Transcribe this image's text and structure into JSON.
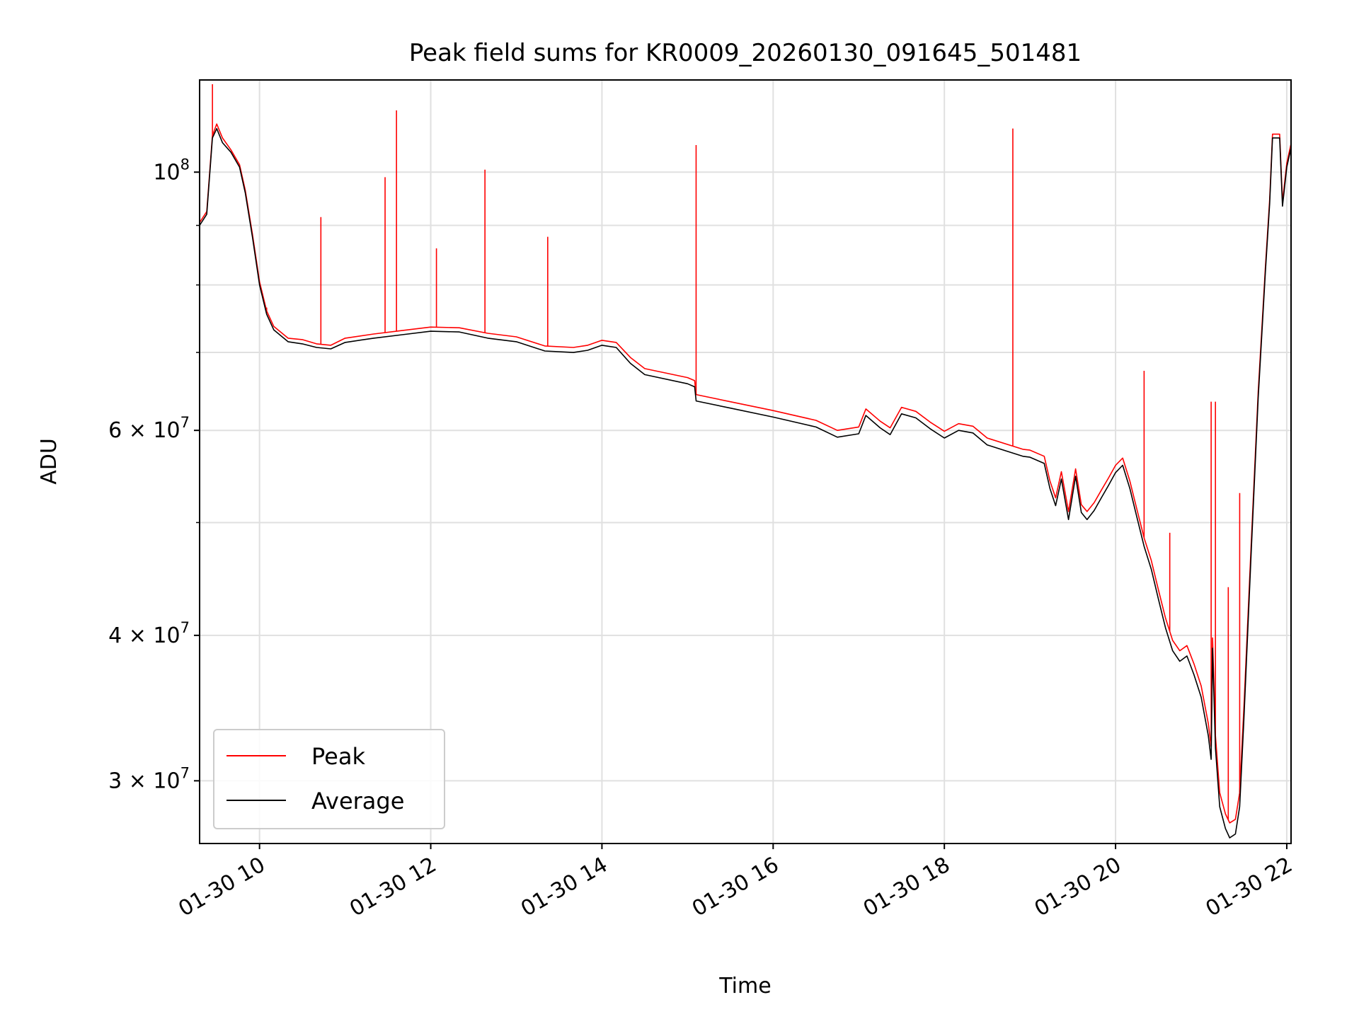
{
  "chart_data": {
    "type": "line",
    "title": "Peak field sums for KR0009_20260130_091645_501481",
    "xlabel": "Time",
    "ylabel": "ADU",
    "yscale": "log",
    "ylim": [
      26500000,
      120000000
    ],
    "xlim": [
      "2026-01-30 09:18",
      "2026-01-30 22:03"
    ],
    "grid": true,
    "legend": {
      "location": "lower-left",
      "entries": [
        "Peak",
        "Average"
      ]
    },
    "x_ticks": [
      {
        "value": "2026-01-30 10:00",
        "label": "01-30 10"
      },
      {
        "value": "2026-01-30 12:00",
        "label": "01-30 12"
      },
      {
        "value": "2026-01-30 14:00",
        "label": "01-30 14"
      },
      {
        "value": "2026-01-30 16:00",
        "label": "01-30 16"
      },
      {
        "value": "2026-01-30 18:00",
        "label": "01-30 18"
      },
      {
        "value": "2026-01-30 20:00",
        "label": "01-30 20"
      },
      {
        "value": "2026-01-30 22:00",
        "label": "01-30 22"
      }
    ],
    "y_ticks_major": [
      {
        "value": 30000000,
        "base": "3 × 10",
        "exp": "7"
      },
      {
        "value": 40000000,
        "base": "4 × 10",
        "exp": "7"
      },
      {
        "value": 60000000,
        "base": "6 × 10",
        "exp": "7"
      },
      {
        "value": 100000000,
        "base": "10",
        "exp": "8"
      }
    ],
    "y_grid_minor": [
      50000000,
      70000000,
      80000000,
      90000000
    ],
    "series": [
      {
        "name": "Average",
        "color": "#000000",
        "points": [
          [
            "2026-01-30 09:18",
            90000000
          ],
          [
            "2026-01-30 09:23",
            92000000
          ],
          [
            "2026-01-30 09:27",
            107000000
          ],
          [
            "2026-01-30 09:30",
            109000000
          ],
          [
            "2026-01-30 09:34",
            106000000
          ],
          [
            "2026-01-30 09:40",
            104000000
          ],
          [
            "2026-01-30 09:46",
            101000000
          ],
          [
            "2026-01-30 09:50",
            96000000
          ],
          [
            "2026-01-30 09:55",
            88000000
          ],
          [
            "2026-01-30 10:00",
            80000000
          ],
          [
            "2026-01-30 10:05",
            75500000
          ],
          [
            "2026-01-30 10:10",
            73200000
          ],
          [
            "2026-01-30 10:20",
            71500000
          ],
          [
            "2026-01-30 10:30",
            71200000
          ],
          [
            "2026-01-30 10:40",
            70700000
          ],
          [
            "2026-01-30 10:50",
            70500000
          ],
          [
            "2026-01-30 11:00",
            71400000
          ],
          [
            "2026-01-30 11:20",
            72000000
          ],
          [
            "2026-01-30 11:40",
            72500000
          ],
          [
            "2026-01-30 12:00",
            73000000
          ],
          [
            "2026-01-30 12:20",
            72900000
          ],
          [
            "2026-01-30 12:40",
            72000000
          ],
          [
            "2026-01-30 13:00",
            71500000
          ],
          [
            "2026-01-30 13:20",
            70200000
          ],
          [
            "2026-01-30 13:40",
            70000000
          ],
          [
            "2026-01-30 13:50",
            70300000
          ],
          [
            "2026-01-30 14:00",
            71000000
          ],
          [
            "2026-01-30 14:10",
            70700000
          ],
          [
            "2026-01-30 14:20",
            68500000
          ],
          [
            "2026-01-30 14:30",
            67000000
          ],
          [
            "2026-01-30 15:00",
            65800000
          ],
          [
            "2026-01-30 15:05",
            65400000
          ],
          [
            "2026-01-30 15:06",
            63600000
          ],
          [
            "2026-01-30 15:30",
            62700000
          ],
          [
            "2026-01-30 16:00",
            61600000
          ],
          [
            "2026-01-30 16:30",
            60400000
          ],
          [
            "2026-01-30 16:45",
            59200000
          ],
          [
            "2026-01-30 17:00",
            59600000
          ],
          [
            "2026-01-30 17:05",
            61800000
          ],
          [
            "2026-01-30 17:15",
            60300000
          ],
          [
            "2026-01-30 17:22",
            59500000
          ],
          [
            "2026-01-30 17:30",
            62000000
          ],
          [
            "2026-01-30 17:40",
            61500000
          ],
          [
            "2026-01-30 17:50",
            60200000
          ],
          [
            "2026-01-30 18:00",
            59100000
          ],
          [
            "2026-01-30 18:10",
            60000000
          ],
          [
            "2026-01-30 18:20",
            59700000
          ],
          [
            "2026-01-30 18:30",
            58300000
          ],
          [
            "2026-01-30 18:55",
            57000000
          ],
          [
            "2026-01-30 19:00",
            56900000
          ],
          [
            "2026-01-30 19:10",
            56200000
          ],
          [
            "2026-01-30 19:14",
            53500000
          ],
          [
            "2026-01-30 19:18",
            51700000
          ],
          [
            "2026-01-30 19:22",
            54500000
          ],
          [
            "2026-01-30 19:27",
            50300000
          ],
          [
            "2026-01-30 19:32",
            54800000
          ],
          [
            "2026-01-30 19:36",
            51000000
          ],
          [
            "2026-01-30 19:40",
            50300000
          ],
          [
            "2026-01-30 19:45",
            51200000
          ],
          [
            "2026-01-30 19:50",
            52500000
          ],
          [
            "2026-01-30 19:55",
            53800000
          ],
          [
            "2026-01-30 20:00",
            55200000
          ],
          [
            "2026-01-30 20:05",
            56000000
          ],
          [
            "2026-01-30 20:10",
            53500000
          ],
          [
            "2026-01-30 20:15",
            50500000
          ],
          [
            "2026-01-30 20:20",
            47700000
          ],
          [
            "2026-01-30 20:25",
            45600000
          ],
          [
            "2026-01-30 20:30",
            43000000
          ],
          [
            "2026-01-30 20:35",
            40600000
          ],
          [
            "2026-01-30 20:40",
            38800000
          ],
          [
            "2026-01-30 20:45",
            38000000
          ],
          [
            "2026-01-30 20:50",
            38400000
          ],
          [
            "2026-01-30 20:55",
            37000000
          ],
          [
            "2026-01-30 21:00",
            35400000
          ],
          [
            "2026-01-30 21:05",
            32800000
          ],
          [
            "2026-01-30 21:07",
            31300000
          ],
          [
            "2026-01-30 21:08",
            39000000
          ],
          [
            "2026-01-30 21:10",
            32000000
          ],
          [
            "2026-01-30 21:13",
            28500000
          ],
          [
            "2026-01-30 21:17",
            27300000
          ],
          [
            "2026-01-30 21:20",
            26800000
          ],
          [
            "2026-01-30 21:24",
            27000000
          ],
          [
            "2026-01-30 21:27",
            28500000
          ],
          [
            "2026-01-30 21:30",
            34000000
          ],
          [
            "2026-01-30 21:35",
            47000000
          ],
          [
            "2026-01-30 21:40",
            64000000
          ],
          [
            "2026-01-30 21:45",
            82000000
          ],
          [
            "2026-01-30 21:48",
            94000000
          ],
          [
            "2026-01-30 21:50",
            107000000
          ],
          [
            "2026-01-30 21:55",
            107000000
          ],
          [
            "2026-01-30 21:57",
            93500000
          ],
          [
            "2026-01-30 22:00",
            101000000
          ],
          [
            "2026-01-30 22:03",
            105000000
          ]
        ]
      },
      {
        "name": "Peak",
        "color": "#ff0000",
        "points": [
          [
            "2026-01-30 09:18",
            90500000
          ],
          [
            "2026-01-30 09:23",
            92500000
          ],
          [
            "2026-01-30 09:27",
            107500000
          ],
          [
            "2026-01-30 09:30",
            110000000
          ],
          [
            "2026-01-30 09:34",
            107000000
          ],
          [
            "2026-01-30 09:40",
            104500000
          ],
          [
            "2026-01-30 09:46",
            101500000
          ],
          [
            "2026-01-30 09:50",
            96500000
          ],
          [
            "2026-01-30 09:55",
            88500000
          ],
          [
            "2026-01-30 10:00",
            80500000
          ],
          [
            "2026-01-30 10:05",
            76000000
          ],
          [
            "2026-01-30 10:10",
            73700000
          ],
          [
            "2026-01-30 10:20",
            72000000
          ],
          [
            "2026-01-30 10:30",
            71800000
          ],
          [
            "2026-01-30 10:40",
            71200000
          ],
          [
            "2026-01-30 10:50",
            71000000
          ],
          [
            "2026-01-30 11:00",
            72000000
          ],
          [
            "2026-01-30 11:20",
            72600000
          ],
          [
            "2026-01-30 11:40",
            73100000
          ],
          [
            "2026-01-30 12:00",
            73600000
          ],
          [
            "2026-01-30 12:20",
            73500000
          ],
          [
            "2026-01-30 12:40",
            72700000
          ],
          [
            "2026-01-30 13:00",
            72200000
          ],
          [
            "2026-01-30 13:20",
            70900000
          ],
          [
            "2026-01-30 13:40",
            70700000
          ],
          [
            "2026-01-30 13:50",
            71000000
          ],
          [
            "2026-01-30 14:00",
            71700000
          ],
          [
            "2026-01-30 14:10",
            71400000
          ],
          [
            "2026-01-30 14:20",
            69300000
          ],
          [
            "2026-01-30 14:30",
            67800000
          ],
          [
            "2026-01-30 15:00",
            66600000
          ],
          [
            "2026-01-30 15:05",
            66200000
          ],
          [
            "2026-01-30 15:06",
            64400000
          ],
          [
            "2026-01-30 15:30",
            63500000
          ],
          [
            "2026-01-30 16:00",
            62400000
          ],
          [
            "2026-01-30 16:30",
            61200000
          ],
          [
            "2026-01-30 16:45",
            60000000
          ],
          [
            "2026-01-30 17:00",
            60400000
          ],
          [
            "2026-01-30 17:05",
            62600000
          ],
          [
            "2026-01-30 17:15",
            61100000
          ],
          [
            "2026-01-30 17:22",
            60300000
          ],
          [
            "2026-01-30 17:30",
            62800000
          ],
          [
            "2026-01-30 17:40",
            62300000
          ],
          [
            "2026-01-30 17:50",
            61000000
          ],
          [
            "2026-01-30 18:00",
            59900000
          ],
          [
            "2026-01-30 18:10",
            60800000
          ],
          [
            "2026-01-30 18:20",
            60500000
          ],
          [
            "2026-01-30 18:30",
            59100000
          ],
          [
            "2026-01-30 18:55",
            57800000
          ],
          [
            "2026-01-30 19:00",
            57700000
          ],
          [
            "2026-01-30 19:10",
            57000000
          ],
          [
            "2026-01-30 19:14",
            54300000
          ],
          [
            "2026-01-30 19:18",
            52500000
          ],
          [
            "2026-01-30 19:22",
            55300000
          ],
          [
            "2026-01-30 19:27",
            51100000
          ],
          [
            "2026-01-30 19:32",
            55600000
          ],
          [
            "2026-01-30 19:36",
            51800000
          ],
          [
            "2026-01-30 19:40",
            51100000
          ],
          [
            "2026-01-30 19:45",
            52000000
          ],
          [
            "2026-01-30 19:50",
            53300000
          ],
          [
            "2026-01-30 19:55",
            54600000
          ],
          [
            "2026-01-30 20:00",
            56000000
          ],
          [
            "2026-01-30 20:05",
            56800000
          ],
          [
            "2026-01-30 20:10",
            54300000
          ],
          [
            "2026-01-30 20:15",
            51300000
          ],
          [
            "2026-01-30 20:20",
            48500000
          ],
          [
            "2026-01-30 20:25",
            46400000
          ],
          [
            "2026-01-30 20:30",
            43800000
          ],
          [
            "2026-01-30 20:35",
            41400000
          ],
          [
            "2026-01-30 20:40",
            39600000
          ],
          [
            "2026-01-30 20:45",
            38800000
          ],
          [
            "2026-01-30 20:50",
            39200000
          ],
          [
            "2026-01-30 20:55",
            37800000
          ],
          [
            "2026-01-30 21:00",
            36200000
          ],
          [
            "2026-01-30 21:05",
            33600000
          ],
          [
            "2026-01-30 21:07",
            32100000
          ],
          [
            "2026-01-30 21:08",
            39800000
          ],
          [
            "2026-01-30 21:10",
            32800000
          ],
          [
            "2026-01-30 21:13",
            29300000
          ],
          [
            "2026-01-30 21:17",
            28100000
          ],
          [
            "2026-01-30 21:20",
            27600000
          ],
          [
            "2026-01-30 21:24",
            27800000
          ],
          [
            "2026-01-30 21:27",
            29300000
          ],
          [
            "2026-01-30 21:30",
            34800000
          ],
          [
            "2026-01-30 21:35",
            47800000
          ],
          [
            "2026-01-30 21:40",
            64800000
          ],
          [
            "2026-01-30 21:45",
            82800000
          ],
          [
            "2026-01-30 21:48",
            94800000
          ],
          [
            "2026-01-30 21:50",
            107800000
          ],
          [
            "2026-01-30 21:55",
            107800000
          ],
          [
            "2026-01-30 21:57",
            94300000
          ],
          [
            "2026-01-30 22:00",
            101800000
          ],
          [
            "2026-01-30 22:03",
            105800000
          ]
        ],
        "spikes": [
          [
            "2026-01-30 09:27",
            119000000
          ],
          [
            "2026-01-30 10:05",
            76500000
          ],
          [
            "2026-01-30 10:43",
            91500000
          ],
          [
            "2026-01-30 11:28",
            99000000
          ],
          [
            "2026-01-30 11:36",
            113000000
          ],
          [
            "2026-01-30 12:04",
            86000000
          ],
          [
            "2026-01-30 12:38",
            100500000
          ],
          [
            "2026-01-30 13:22",
            88000000
          ],
          [
            "2026-01-30 15:06",
            105500000
          ],
          [
            "2026-01-30 18:48",
            109000000
          ],
          [
            "2026-01-30 20:20",
            67500000
          ],
          [
            "2026-01-30 20:38",
            49000000
          ],
          [
            "2026-01-30 21:07",
            63500000
          ],
          [
            "2026-01-30 21:10",
            63500000
          ],
          [
            "2026-01-30 21:19",
            44000000
          ],
          [
            "2026-01-30 21:27",
            53000000
          ]
        ]
      }
    ]
  }
}
